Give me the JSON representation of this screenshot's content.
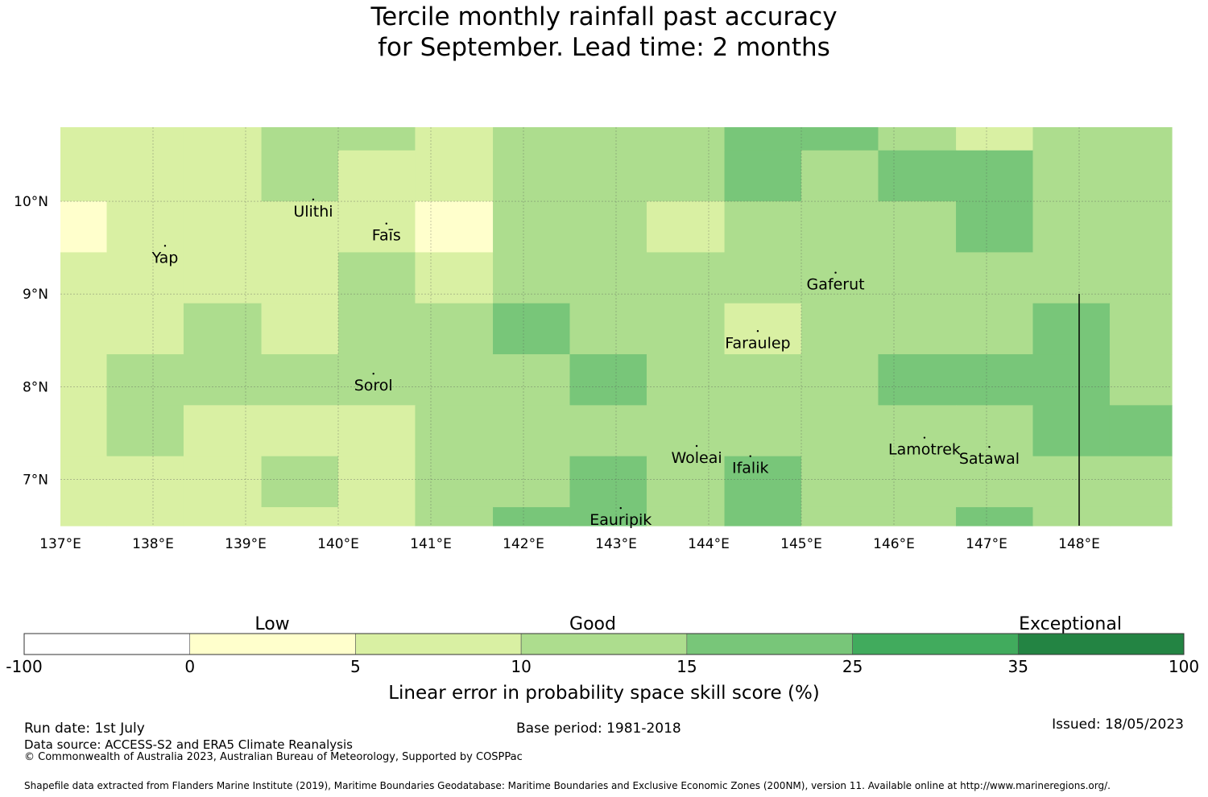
{
  "title": {
    "line1": "Tercile monthly rainfall past accuracy",
    "line2": "for September. Lead time: 2 months"
  },
  "map": {
    "lon_ticks": [
      "137°E",
      "138°E",
      "139°E",
      "140°E",
      "141°E",
      "142°E",
      "143°E",
      "144°E",
      "145°E",
      "146°E",
      "147°E",
      "148°E"
    ],
    "lat_ticks": [
      "10°N",
      "9°N",
      "8°N",
      "7°N"
    ],
    "places": [
      {
        "name": "Ulithi",
        "lon": 139.73,
        "lat": 10.02
      },
      {
        "name": "Faīs",
        "lon": 140.52,
        "lat": 9.76
      },
      {
        "name": "Yap",
        "lon": 138.13,
        "lat": 9.52
      },
      {
        "name": "Gaferut",
        "lon": 145.37,
        "lat": 9.23
      },
      {
        "name": "Faraulep",
        "lon": 144.53,
        "lat": 8.6
      },
      {
        "name": "Sorol",
        "lon": 140.38,
        "lat": 8.14
      },
      {
        "name": "Woleai",
        "lon": 143.87,
        "lat": 7.36
      },
      {
        "name": "Ifalik",
        "lon": 144.45,
        "lat": 7.25
      },
      {
        "name": "Lamotrek",
        "lon": 146.33,
        "lat": 7.45
      },
      {
        "name": "Satawal",
        "lon": 147.03,
        "lat": 7.35
      },
      {
        "name": "Eauripik",
        "lon": 143.05,
        "lat": 6.69
      }
    ]
  },
  "legend": {
    "categories": {
      "low": "Low",
      "good": "Good",
      "exceptional": "Exceptional"
    },
    "ticks": [
      "-100",
      "0",
      "5",
      "10",
      "15",
      "25",
      "35",
      "100"
    ],
    "colors": [
      "#ffffff",
      "#ffffcc",
      "#d9f0a3",
      "#addd8e",
      "#78c679",
      "#41ab5d",
      "#238443"
    ],
    "title": "Linear error in probability space skill score (%)"
  },
  "footer": {
    "run_date": "Run date: 1st July",
    "base_period": "Base period: 1981-2018",
    "issued": "Issued: 18/05/2023",
    "data_source": "Data source: ACCESS-S2 and ERA5 Climate Reanalysis",
    "copyright": "© Commonwealth of Australia 2023, Australian Bureau of Meteorology, Supported by COSPPac",
    "shapefile": "Shapefile data extracted from Flanders Marine Institute (2019), Maritime Boundaries Geodatabase: Maritime Boundaries and Exclusive Economic Zones (200NM), version 11. Available online at http://www.marineregions.org/."
  },
  "chart_data": {
    "type": "heatmap",
    "x_range_lon": [
      137.0,
      149.0
    ],
    "y_range_lat": [
      6.5,
      10.8
    ],
    "cell_lon_edges": [
      137.0,
      137.5,
      138.33,
      139.17,
      140.0,
      140.83,
      141.67,
      142.5,
      143.33,
      144.17,
      145.0,
      145.83,
      146.67,
      147.5,
      148.33,
      149.0
    ],
    "cell_lat_edges": [
      10.8,
      10.55,
      10.0,
      9.45,
      8.9,
      8.35,
      7.8,
      7.25,
      6.7,
      6.5
    ],
    "category_index_grid": [
      [
        2,
        2,
        2,
        3,
        3,
        2,
        3,
        3,
        3,
        4,
        4,
        3,
        2,
        3,
        3
      ],
      [
        2,
        2,
        2,
        3,
        2,
        2,
        3,
        3,
        3,
        4,
        3,
        4,
        4,
        3,
        3
      ],
      [
        1,
        2,
        2,
        2,
        2,
        1,
        3,
        3,
        2,
        3,
        3,
        3,
        4,
        3,
        3
      ],
      [
        2,
        2,
        2,
        2,
        3,
        2,
        3,
        3,
        3,
        3,
        3,
        3,
        3,
        3,
        3
      ],
      [
        2,
        2,
        3,
        2,
        3,
        3,
        4,
        3,
        3,
        2,
        3,
        3,
        3,
        4,
        3
      ],
      [
        2,
        3,
        3,
        3,
        3,
        3,
        3,
        4,
        3,
        3,
        3,
        4,
        4,
        4,
        3
      ],
      [
        2,
        3,
        2,
        2,
        2,
        3,
        3,
        3,
        3,
        3,
        3,
        3,
        3,
        4,
        4
      ],
      [
        2,
        2,
        2,
        3,
        2,
        3,
        3,
        4,
        3,
        4,
        3,
        3,
        3,
        3,
        3
      ],
      [
        2,
        2,
        2,
        2,
        2,
        3,
        4,
        4,
        3,
        4,
        3,
        3,
        4,
        3,
        3
      ]
    ]
  }
}
